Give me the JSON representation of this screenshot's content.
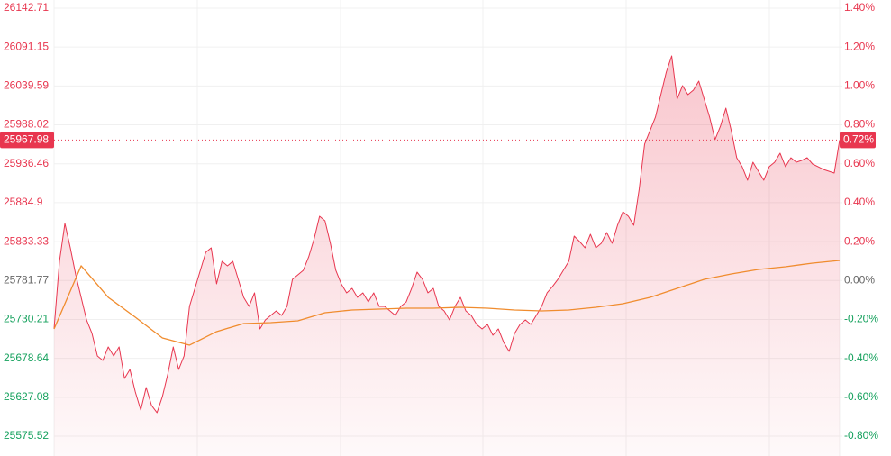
{
  "chart_data": {
    "type": "line",
    "ylim": [
      25575.52,
      26142.71
    ],
    "yticks": [
      26142.71,
      26091.15,
      26039.59,
      25988.02,
      25936.46,
      25884.9,
      25833.33,
      25781.77,
      25730.21,
      25678.64,
      25627.08,
      25575.52
    ],
    "y2lim": [
      -0.8,
      1.4
    ],
    "y2ticks": [
      {
        "value": 1.4,
        "label": "1.40%"
      },
      {
        "value": 1.2,
        "label": "1.20%"
      },
      {
        "value": 1.0,
        "label": "1.00%"
      },
      {
        "value": 0.8,
        "label": "0.80%"
      },
      {
        "value": 0.6,
        "label": "0.60%"
      },
      {
        "value": 0.4,
        "label": "0.40%"
      },
      {
        "value": 0.2,
        "label": "0.20%"
      },
      {
        "value": 0.0,
        "label": "0.00%"
      },
      {
        "value": -0.2,
        "label": "-0.20%"
      },
      {
        "value": -0.4,
        "label": "-0.40%"
      },
      {
        "value": -0.6,
        "label": "-0.60%"
      },
      {
        "value": -0.8,
        "label": "-0.80%"
      }
    ],
    "grid": true,
    "up_color": "#e8364f",
    "down_color": "#15a15d",
    "flat_color": "#666666",
    "current_price": 25967.98,
    "current_change": {
      "value": 0.72,
      "label": "0.72%"
    },
    "series": [
      {
        "color": "#e8364f",
        "values": [
          25717.65,
          25807.2,
          25857.34,
          25825.11,
          25789.29,
          25759.44,
          25729.59,
          25711.68,
          25681.83,
          25675.86,
          25693.77,
          25681.83,
          25693.77,
          25651.98,
          25663.92,
          25634.07,
          25610.19,
          25640.04,
          25616.16,
          25606.6,
          25628.1,
          25657.95,
          25693.77,
          25663.92,
          25681.83,
          25747.5,
          25771.38,
          25795.26,
          25819.14,
          25825.11,
          25777.35,
          25807.2,
          25801.23,
          25807.2,
          25783.32,
          25759.44,
          25747.5,
          25765.41,
          25717.65,
          25729.59,
          25735.56,
          25741.53,
          25735.56,
          25747.5,
          25783.32,
          25789.29,
          25795.26,
          25813.17,
          25837.05,
          25866.9,
          25860.93,
          25831.08,
          25795.26,
          25777.35,
          25765.41,
          25771.38,
          25759.44,
          25765.41,
          25753.47,
          25765.41,
          25747.5,
          25747.5,
          25741.53,
          25735.56,
          25747.5,
          25753.47,
          25771.38,
          25792.87,
          25783.32,
          25765.41,
          25771.38,
          25747.5,
          25741.53,
          25729.59,
          25747.5,
          25759.44,
          25741.53,
          25735.56,
          25723.62,
          25717.65,
          25723.62,
          25709.29,
          25717.65,
          25699.74,
          25687.8,
          25711.68,
          25723.62,
          25729.59,
          25723.62,
          25735.56,
          25747.5,
          25765.41,
          25773.76,
          25783.32,
          25795.26,
          25807.2,
          25840.63,
          25833.46,
          25825.11,
          25843.02,
          25825.11,
          25831.08,
          25845.4,
          25831.08,
          25854.96,
          25872.87,
          25866.9,
          25854.96,
          25902.72,
          25962.42,
          25980.33,
          25998.24,
          26028.09,
          26057.94,
          26079.43,
          26022.12,
          26040.03,
          26028.09,
          26034.06,
          26046.0,
          26022.12,
          25998.24,
          25968.39,
          25986.3,
          26010.18,
          25980.33,
          25944.51,
          25932.57,
          25914.66,
          25938.54,
          25926.6,
          25914.66,
          25932.57,
          25938.54,
          25950.48,
          25932.57,
          25944.51,
          25938.54,
          25940.92,
          25944.51,
          25936.15,
          25932.57,
          25928.98,
          25926.6,
          25924.21,
          25967.98
        ]
      },
      {
        "color": "#f08c2e",
        "values": [
          25717.65,
          25801.23,
          25759.44,
          25733.17,
          25705.71,
          25696.15,
          25714.06,
          25724.81,
          25726.0,
          25728.39,
          25739.14,
          25742.72,
          25743.91,
          25745.11,
          25745.11,
          25746.3,
          25745.11,
          25742.72,
          25741.53,
          25742.72,
          25746.3,
          25751.08,
          25759.44,
          25771.38,
          25783.32,
          25790.48,
          25796.45,
          25800.03,
          25804.81,
          25808.39
        ]
      }
    ]
  }
}
